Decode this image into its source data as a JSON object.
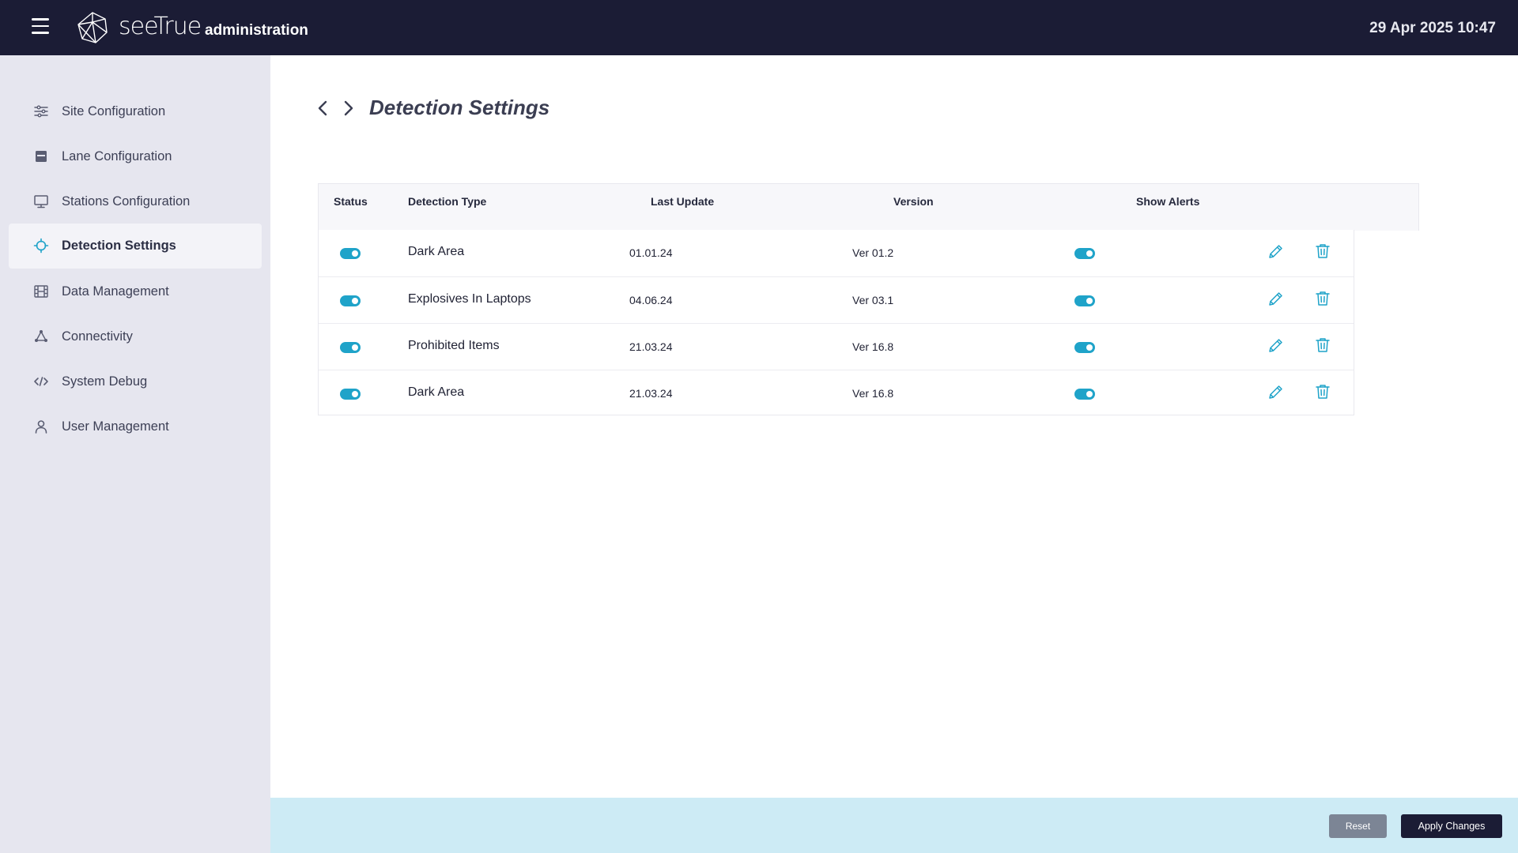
{
  "header": {
    "logo_text": "seeTrue",
    "app_name": "administration",
    "datetime": "29 Apr 2025 10:47",
    "menu_icon": "hamburger-menu-icon",
    "logo_icon": "polyhedron-logo-icon"
  },
  "sidebar": {
    "items": [
      {
        "label": "Site Configuration",
        "icon": "sliders-icon",
        "active": false
      },
      {
        "label": "Lane Configuration",
        "icon": "lane-icon",
        "active": false
      },
      {
        "label": "Stations Configuration",
        "icon": "monitor-icon",
        "active": false
      },
      {
        "label": "Detection Settings",
        "icon": "crosshair-icon",
        "active": true
      },
      {
        "label": "Data Management",
        "icon": "film-icon",
        "active": false
      },
      {
        "label": "Connectivity",
        "icon": "network-icon",
        "active": false
      },
      {
        "label": "System Debug",
        "icon": "code-icon",
        "active": false
      },
      {
        "label": "User Management",
        "icon": "user-icon",
        "active": false
      }
    ]
  },
  "main": {
    "title": "Detection Settings",
    "table": {
      "headers": {
        "status": "Status",
        "detection_type": "Detection Type",
        "last_update": "Last Update",
        "version": "Version",
        "show_alerts": "Show Alerts"
      },
      "rows": [
        {
          "status": true,
          "detection_type": "Dark Area",
          "last_update": "01.01.24",
          "version": "Ver 01.2",
          "show_alerts": true
        },
        {
          "status": true,
          "detection_type": "Explosives In Laptops",
          "last_update": "04.06.24",
          "version": "Ver 03.1",
          "show_alerts": true
        },
        {
          "status": true,
          "detection_type": "Prohibited Items",
          "last_update": "21.03.24",
          "version": "Ver 16.8",
          "show_alerts": true
        },
        {
          "status": true,
          "detection_type": "Dark Area",
          "last_update": "21.03.24",
          "version": "Ver 16.8",
          "show_alerts": true
        }
      ]
    }
  },
  "footer": {
    "reset_label": "Reset",
    "apply_label": "Apply Changes"
  },
  "colors": {
    "topbar": "#1b1c35",
    "sidebar": "#e6e6ef",
    "accent": "#1fa3c9",
    "footer": "#cdebf5",
    "reset_button": "#7c8595",
    "apply_button": "#1b1c35"
  }
}
